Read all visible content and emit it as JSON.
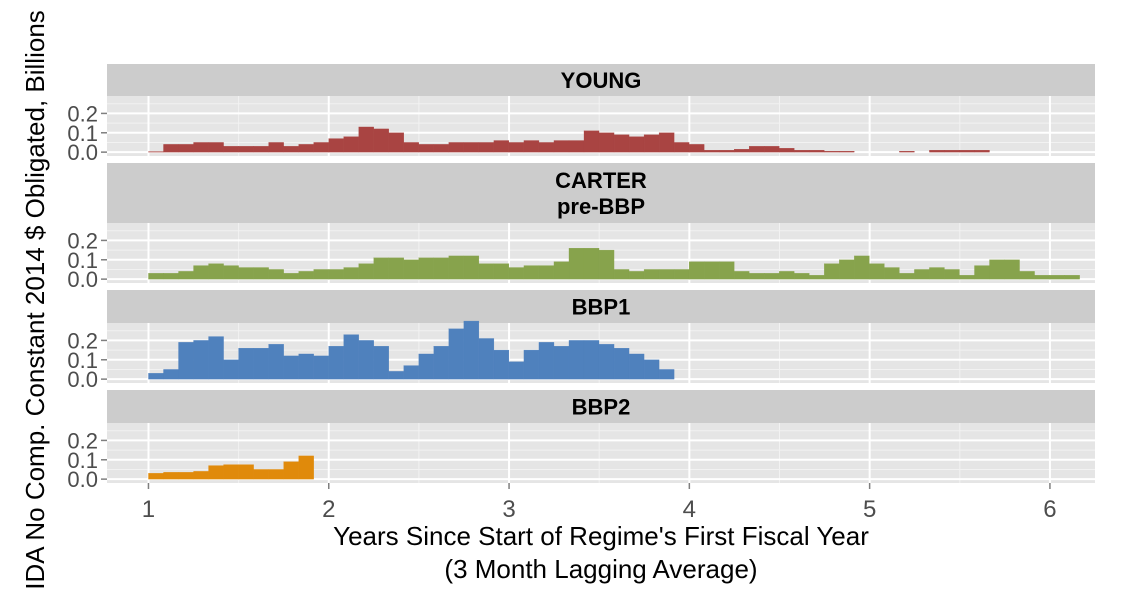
{
  "chart_data": {
    "type": "bar",
    "xlabel": [
      "Years Since Start of Regime's First Fiscal Year",
      "(3 Month Lagging Average)"
    ],
    "ylabel": "IDA No Comp. Constant 2014 $ Obligated, Billions",
    "xlim": [
      0.77,
      6.25
    ],
    "x_ticks": [
      1,
      2,
      3,
      4,
      5,
      6
    ],
    "ylim": [
      -0.02,
      0.29
    ],
    "y_ticks": [
      0.0,
      0.1,
      0.2
    ],
    "y_tick_labels": [
      "0.0",
      "0.1",
      "0.2"
    ],
    "bin_width": 0.0833,
    "x_start": 1.0417,
    "grid": true,
    "panels": [
      {
        "strip": [
          "YOUNG"
        ],
        "color": "#a94442",
        "values": [
          0.003,
          0.04,
          0.04,
          0.05,
          0.05,
          0.03,
          0.03,
          0.03,
          0.05,
          0.03,
          0.04,
          0.05,
          0.07,
          0.08,
          0.13,
          0.12,
          0.1,
          0.05,
          0.04,
          0.04,
          0.05,
          0.05,
          0.05,
          0.06,
          0.05,
          0.06,
          0.05,
          0.06,
          0.06,
          0.11,
          0.1,
          0.09,
          0.08,
          0.09,
          0.1,
          0.05,
          0.04,
          0.01,
          0.01,
          0.015,
          0.03,
          0.03,
          0.02,
          0.01,
          0.01,
          0.005,
          0.005,
          0,
          0,
          0,
          0.005,
          0,
          0.01,
          0.01,
          0.01,
          0.01,
          0,
          0,
          0,
          0,
          0,
          0,
          0,
          0,
          0,
          0,
          0,
          0,
          0,
          0,
          0,
          0,
          0,
          0
        ]
      },
      {
        "strip": [
          "CARTER",
          "pre-BBP"
        ],
        "color": "#87a34c",
        "values": [
          0.03,
          0.03,
          0.04,
          0.07,
          0.08,
          0.07,
          0.06,
          0.06,
          0.05,
          0.03,
          0.04,
          0.05,
          0.05,
          0.06,
          0.08,
          0.11,
          0.11,
          0.1,
          0.11,
          0.11,
          0.12,
          0.12,
          0.08,
          0.08,
          0.06,
          0.07,
          0.07,
          0.09,
          0.16,
          0.16,
          0.15,
          0.05,
          0.04,
          0.05,
          0.05,
          0.05,
          0.09,
          0.09,
          0.09,
          0.04,
          0.03,
          0.03,
          0.04,
          0.03,
          0.02,
          0.08,
          0.1,
          0.12,
          0.08,
          0.06,
          0.03,
          0.05,
          0.06,
          0.05,
          0.02,
          0.07,
          0.1,
          0.1,
          0.04,
          0.02,
          0.02,
          0.02,
          0,
          0,
          0,
          0,
          0,
          0,
          0,
          0,
          0,
          0
        ]
      },
      {
        "strip": [
          "BBP1"
        ],
        "color": "#4f81bd",
        "values": [
          0.03,
          0.05,
          0.19,
          0.2,
          0.22,
          0.1,
          0.16,
          0.16,
          0.18,
          0.12,
          0.13,
          0.12,
          0.17,
          0.23,
          0.2,
          0.17,
          0.04,
          0.07,
          0.13,
          0.17,
          0.26,
          0.3,
          0.21,
          0.15,
          0.09,
          0.15,
          0.19,
          0.17,
          0.2,
          0.2,
          0.18,
          0.16,
          0.13,
          0.1,
          0.05,
          0,
          0,
          0,
          0,
          0,
          0,
          0,
          0,
          0,
          0,
          0,
          0,
          0,
          0,
          0,
          0,
          0,
          0,
          0,
          0,
          0,
          0,
          0,
          0,
          0
        ]
      },
      {
        "strip": [
          "BBP2"
        ],
        "color": "#e08a0b",
        "values": [
          0.03,
          0.035,
          0.035,
          0.04,
          0.07,
          0.075,
          0.075,
          0.05,
          0.05,
          0.09,
          0.12,
          0,
          0,
          0
        ]
      }
    ]
  }
}
